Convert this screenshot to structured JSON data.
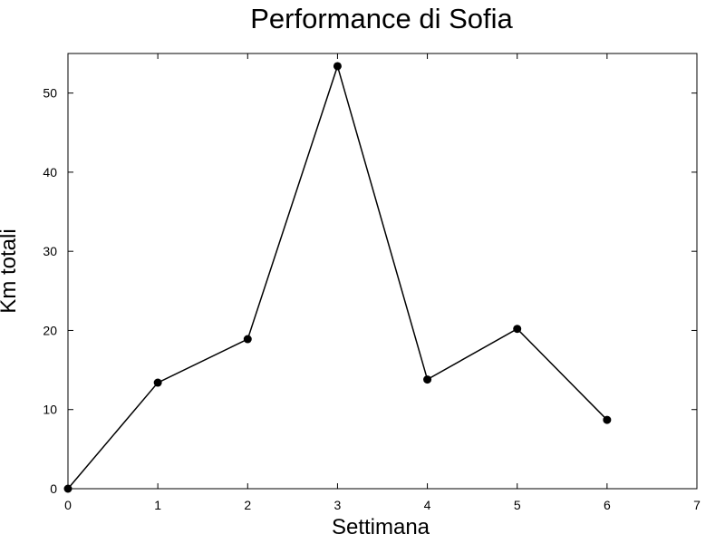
{
  "chart_data": {
    "type": "line",
    "title": "Performance di Sofia",
    "xlabel": "Settimana",
    "ylabel": "Km totali",
    "xlim": [
      0,
      7
    ],
    "ylim": [
      0,
      55
    ],
    "xticks": [
      0,
      1,
      2,
      3,
      4,
      5,
      6,
      7
    ],
    "yticks": [
      0,
      10,
      20,
      30,
      40,
      50
    ],
    "grid": false,
    "legend": "none",
    "series": [
      {
        "x": [
          0,
          1,
          2,
          3,
          4,
          5,
          6
        ],
        "y": [
          0,
          13.4,
          18.9,
          53.4,
          13.8,
          20.2,
          8.7
        ],
        "color": "#000000",
        "marker": "circle"
      }
    ]
  }
}
